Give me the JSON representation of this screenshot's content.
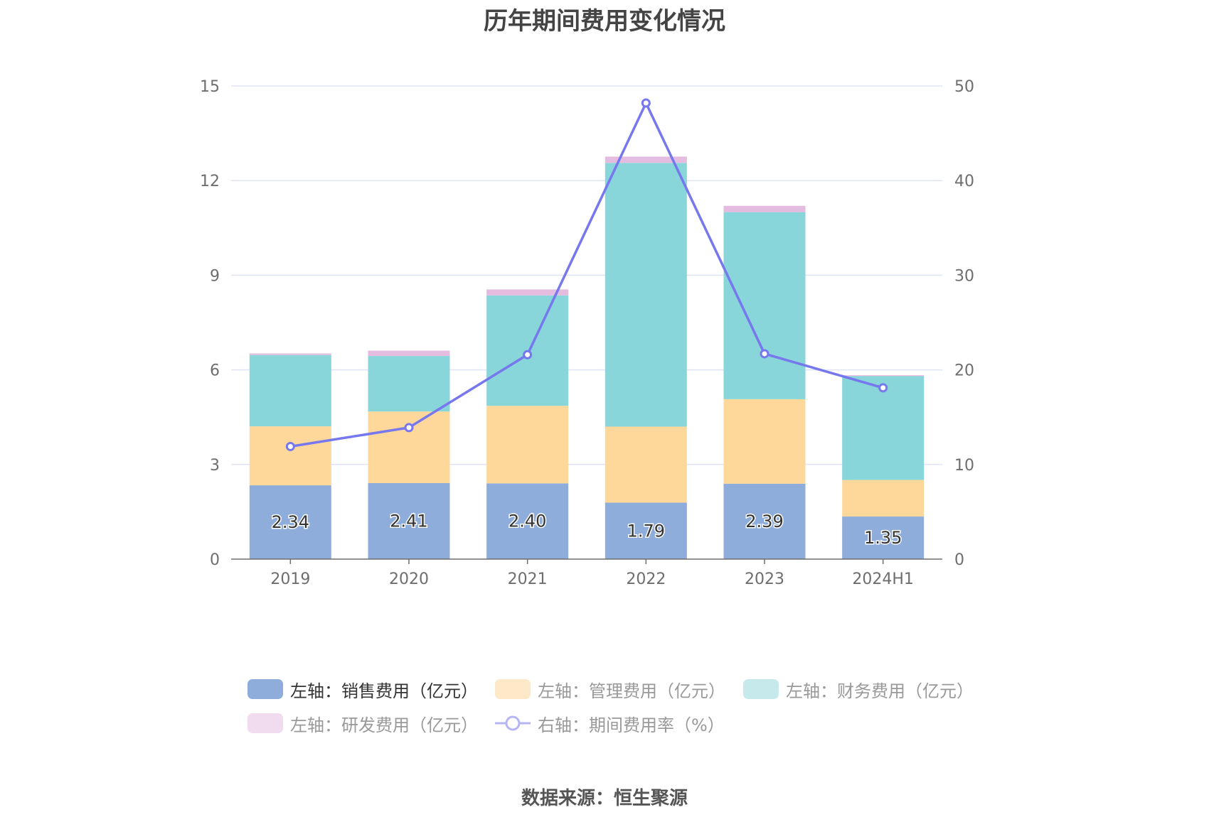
{
  "title": "历年期间费用变化情况",
  "source": "数据来源：恒生聚源",
  "colors": {
    "sales": "#8eaddb",
    "admin": "#fed89b",
    "finance": "#88d5da",
    "rd": "#e4bce0",
    "rate": "#7777ee",
    "grid": "#e0e3f5"
  },
  "legend": [
    {
      "label": "左轴：销售费用（亿元）",
      "color": "#8eaddb",
      "active": true
    },
    {
      "label": "左轴：管理费用（亿元）",
      "color": "#fde8c8",
      "active": false
    },
    {
      "label": "左轴：财务费用（亿元）",
      "color": "#c6eaec",
      "active": false
    },
    {
      "label": "左轴：研发费用（亿元）",
      "color": "#f0dcee",
      "active": false
    },
    {
      "label": "右轴：期间费用率（%）",
      "color": "#b5b5f5",
      "active": false,
      "line": true
    }
  ],
  "chart_data": {
    "type": "bar",
    "stacked": true,
    "categories": [
      "2019",
      "2020",
      "2021",
      "2022",
      "2023",
      "2024H1"
    ],
    "series": [
      {
        "name": "左轴：销售费用（亿元）",
        "axis": "left",
        "values": [
          2.34,
          2.41,
          2.4,
          1.79,
          2.39,
          1.35
        ],
        "labels": [
          "2.34",
          "2.41",
          "2.40",
          "1.79",
          "2.39",
          "1.35"
        ]
      },
      {
        "name": "左轴：管理费用（亿元）",
        "axis": "left",
        "values": [
          1.87,
          2.27,
          2.46,
          2.41,
          2.68,
          1.16
        ]
      },
      {
        "name": "左轴：财务费用（亿元）",
        "axis": "left",
        "values": [
          2.26,
          1.76,
          3.5,
          8.36,
          5.93,
          3.29
        ]
      },
      {
        "name": "左轴：研发费用（亿元）",
        "axis": "left",
        "values": [
          0.05,
          0.17,
          0.19,
          0.2,
          0.2,
          0.03
        ]
      },
      {
        "name": "右轴：期间费用率（%）",
        "axis": "right",
        "type": "line",
        "values": [
          11.9,
          13.9,
          21.6,
          48.2,
          21.7,
          18.1
        ]
      }
    ],
    "yleft": {
      "ticks": [
        "0",
        "3",
        "6",
        "9",
        "12",
        "15"
      ],
      "ylim": [
        0,
        15
      ]
    },
    "yright": {
      "ticks": [
        "0",
        "10",
        "20",
        "30",
        "40",
        "50"
      ],
      "ylim": [
        0,
        50
      ]
    },
    "grid": true,
    "legend_position": "bottom"
  }
}
